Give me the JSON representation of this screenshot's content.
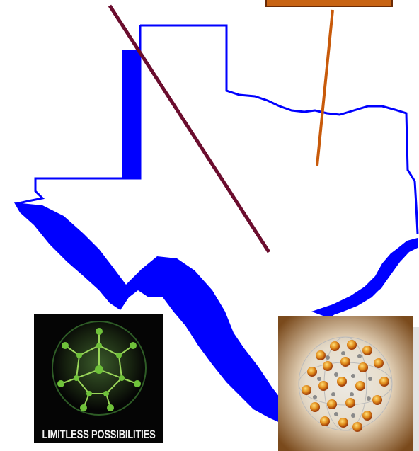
{
  "colors": {
    "map_fill": "#0000ff",
    "map_interior": "#ffffff",
    "pointer_dark": "#6b0d2e",
    "pointer_orange": "#c85a0a",
    "tag_fill": "#c86414",
    "molecule_green": "#6fc23a",
    "sphere_orange": "#e07a10"
  },
  "icons": {
    "map": "texas-outline",
    "left_image": "green-molecule",
    "right_image": "fullerene-sphere"
  },
  "left_image": {
    "caption": "LIMITLESS POSSIBILITIES"
  }
}
